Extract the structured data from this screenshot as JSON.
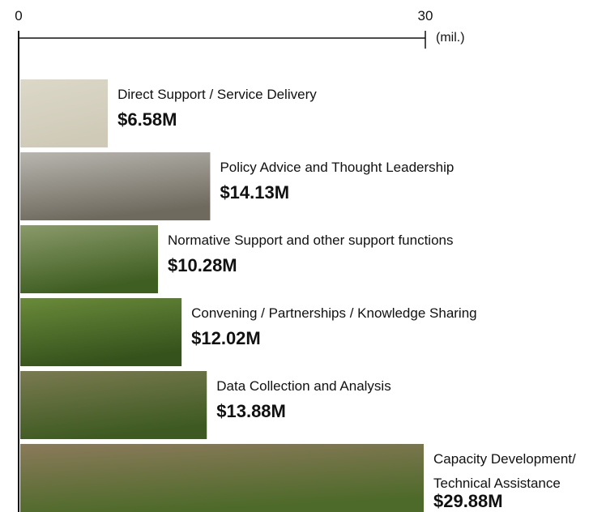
{
  "chart_data": {
    "type": "bar",
    "orientation": "horizontal",
    "x_label": "(mil.)",
    "categories": [
      "Direct Support / Service Delivery",
      "Policy Advice and Thought Leadership",
      "Normative Support and other support functions",
      "Convening / Partnerships / Knowledge Sharing",
      "Data Collection and Analysis",
      "Capacity Development/ Technical Assistance"
    ],
    "values": [
      6.58,
      14.13,
      10.28,
      12.02,
      13.88,
      29.88
    ],
    "value_labels": [
      "$6.58M",
      "$14.13M",
      "$10.28M",
      "$12.02M",
      "$13.88M",
      "$29.88M"
    ],
    "colors": [
      [
        "#dcd8c8",
        "#cfcab8"
      ],
      [
        "#b8b6b0",
        "#6f6a5e"
      ],
      [
        "#8a9a6a",
        "#3f5e22"
      ],
      [
        "#6a8a3a",
        "#35521c"
      ],
      [
        "#7a7a50",
        "#3e5a22"
      ],
      [
        "#8a7a5a",
        "#4e6a2a"
      ]
    ],
    "xlim": [
      0,
      30
    ],
    "xticks": [
      0,
      30
    ]
  }
}
